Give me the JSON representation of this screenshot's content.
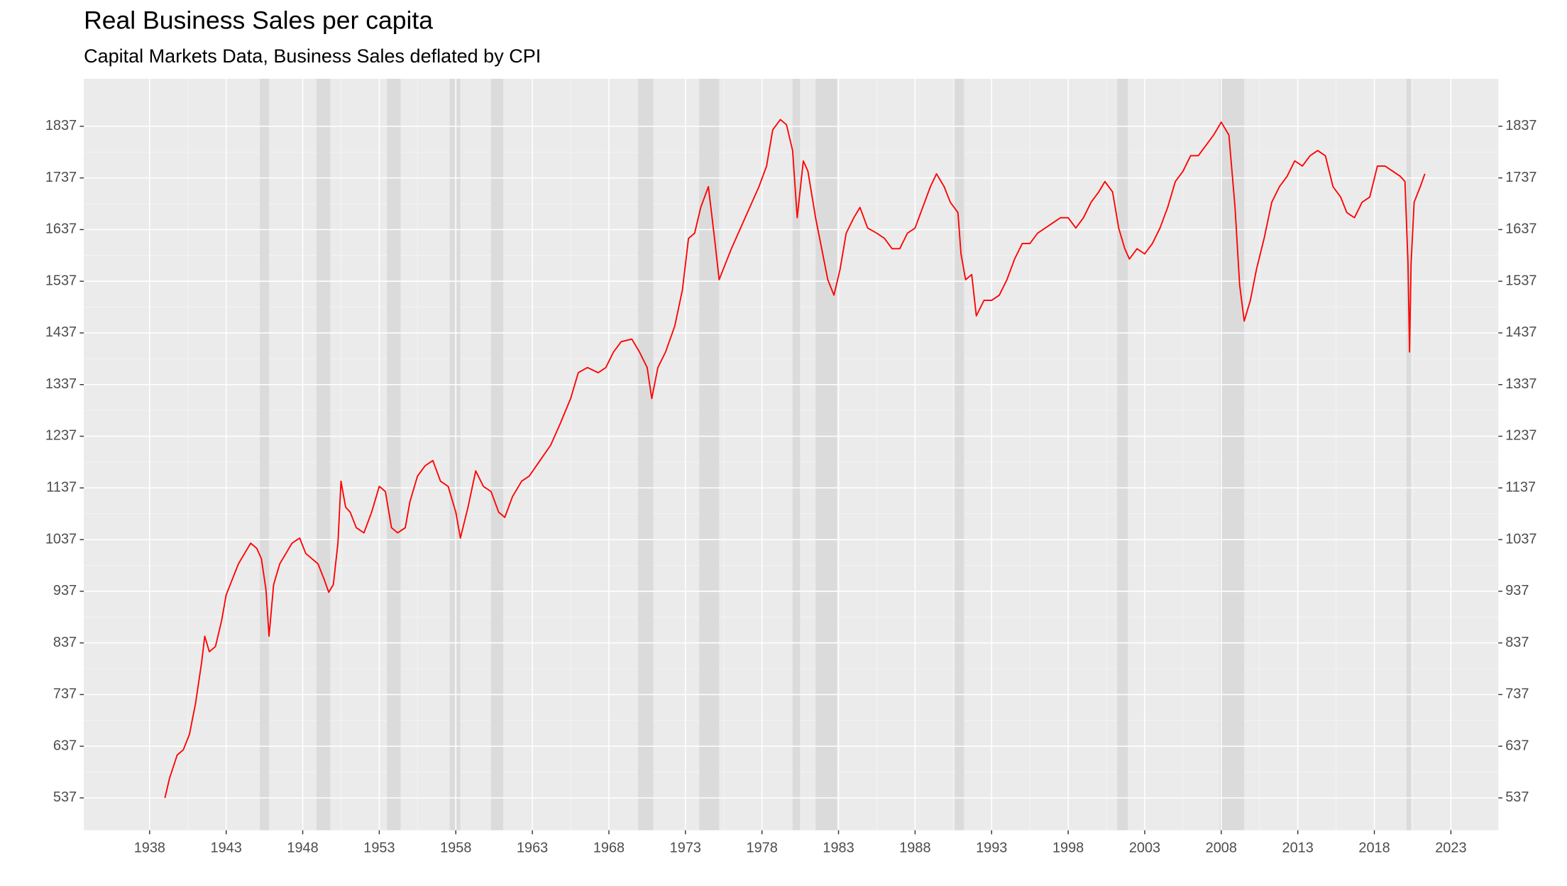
{
  "chart_data": {
    "type": "line",
    "title": "Real Business Sales per capita",
    "subtitle": "Capital Markets Data, Business Sales deflated by CPI",
    "color": "#ff0000",
    "x": [
      1939.0,
      1939.3,
      1939.8,
      1940.2,
      1940.6,
      1941.0,
      1941.4,
      1941.6,
      1941.9,
      1942.3,
      1942.7,
      1943.0,
      1943.4,
      1943.8,
      1944.2,
      1944.6,
      1945.0,
      1945.3,
      1945.6,
      1945.8,
      1946.1,
      1946.5,
      1946.9,
      1947.3,
      1947.8,
      1948.2,
      1948.6,
      1949.0,
      1949.4,
      1949.7,
      1950.0,
      1950.3,
      1950.5,
      1950.8,
      1951.1,
      1951.5,
      1952.0,
      1952.5,
      1953.0,
      1953.4,
      1953.8,
      1954.2,
      1954.7,
      1955.0,
      1955.5,
      1956.0,
      1956.5,
      1957.0,
      1957.5,
      1958.0,
      1958.3,
      1958.8,
      1959.3,
      1959.8,
      1960.3,
      1960.8,
      1961.2,
      1961.7,
      1962.3,
      1962.8,
      1963.5,
      1964.2,
      1964.8,
      1965.5,
      1966.0,
      1966.6,
      1967.3,
      1967.8,
      1968.3,
      1968.8,
      1969.5,
      1970.0,
      1970.5,
      1970.8,
      1971.2,
      1971.7,
      1972.3,
      1972.8,
      1973.2,
      1973.6,
      1974.0,
      1974.5,
      1974.9,
      1975.2,
      1975.6,
      1976.0,
      1976.6,
      1977.2,
      1977.8,
      1978.3,
      1978.7,
      1979.2,
      1979.6,
      1980.0,
      1980.3,
      1980.7,
      1981.0,
      1981.5,
      1981.9,
      1982.3,
      1982.7,
      1983.1,
      1983.5,
      1984.0,
      1984.4,
      1984.9,
      1985.5,
      1986.0,
      1986.5,
      1987.0,
      1987.5,
      1988.0,
      1988.5,
      1989.0,
      1989.4,
      1989.9,
      1990.3,
      1990.8,
      1991.0,
      1991.3,
      1991.7,
      1992.0,
      1992.5,
      1993.0,
      1993.5,
      1994.0,
      1994.5,
      1995.0,
      1995.5,
      1996.0,
      1996.5,
      1997.0,
      1997.5,
      1998.0,
      1998.5,
      1999.0,
      1999.5,
      2000.0,
      2000.4,
      2000.9,
      2001.3,
      2001.7,
      2002.0,
      2002.5,
      2003.0,
      2003.5,
      2004.0,
      2004.5,
      2005.0,
      2005.5,
      2006.0,
      2006.5,
      2007.0,
      2007.5,
      2008.0,
      2008.5,
      2008.9,
      2009.2,
      2009.5,
      2009.9,
      2010.3,
      2010.8,
      2011.3,
      2011.8,
      2012.3,
      2012.8,
      2013.3,
      2013.8,
      2014.3,
      2014.8,
      2015.3,
      2015.8,
      2016.2,
      2016.7,
      2017.2,
      2017.7,
      2018.2,
      2018.7,
      2019.2,
      2019.7,
      2020.0,
      2020.2,
      2020.3,
      2020.4,
      2020.6,
      2021.0,
      2021.3
    ],
    "series": [
      {
        "color": "#ff0000",
        "values": [
          537,
          575,
          620,
          630,
          660,
          720,
          800,
          850,
          820,
          830,
          880,
          930,
          960,
          990,
          1010,
          1030,
          1020,
          1000,
          940,
          850,
          950,
          990,
          1010,
          1030,
          1040,
          1010,
          1000,
          990,
          960,
          935,
          950,
          1030,
          1150,
          1100,
          1090,
          1060,
          1050,
          1090,
          1140,
          1130,
          1060,
          1050,
          1060,
          1110,
          1160,
          1180,
          1190,
          1150,
          1140,
          1090,
          1040,
          1100,
          1170,
          1140,
          1130,
          1090,
          1080,
          1120,
          1150,
          1160,
          1190,
          1220,
          1260,
          1310,
          1360,
          1370,
          1360,
          1370,
          1400,
          1420,
          1425,
          1400,
          1370,
          1310,
          1370,
          1400,
          1450,
          1520,
          1620,
          1630,
          1680,
          1720,
          1620,
          1540,
          1570,
          1600,
          1640,
          1680,
          1720,
          1760,
          1830,
          1850,
          1840,
          1790,
          1660,
          1770,
          1750,
          1660,
          1600,
          1540,
          1510,
          1560,
          1630,
          1660,
          1680,
          1640,
          1630,
          1620,
          1600,
          1600,
          1630,
          1640,
          1680,
          1720,
          1745,
          1720,
          1690,
          1670,
          1590,
          1540,
          1550,
          1470,
          1500,
          1500,
          1510,
          1540,
          1580,
          1610,
          1610,
          1630,
          1640,
          1650,
          1660,
          1660,
          1640,
          1660,
          1690,
          1710,
          1730,
          1710,
          1640,
          1600,
          1580,
          1600,
          1590,
          1610,
          1640,
          1680,
          1730,
          1750,
          1780,
          1780,
          1800,
          1820,
          1845,
          1820,
          1680,
          1530,
          1460,
          1500,
          1560,
          1620,
          1690,
          1720,
          1740,
          1770,
          1760,
          1780,
          1790,
          1780,
          1720,
          1700,
          1670,
          1660,
          1690,
          1700,
          1760,
          1760,
          1750,
          1740,
          1730,
          1570,
          1400,
          1570,
          1690,
          1720,
          1745
        ]
      }
    ],
    "recessions": [
      [
        1945.2,
        1945.8
      ],
      [
        1948.9,
        1949.8
      ],
      [
        1953.5,
        1954.4
      ],
      [
        1957.6,
        1958.3
      ],
      [
        1960.3,
        1961.1
      ],
      [
        1969.9,
        1970.9
      ],
      [
        1973.9,
        1975.2
      ],
      [
        1980.0,
        1980.5
      ],
      [
        1981.5,
        1982.9
      ],
      [
        1990.6,
        1991.2
      ],
      [
        2001.2,
        2001.9
      ],
      [
        2007.9,
        2009.5
      ],
      [
        2020.1,
        2020.4
      ]
    ],
    "recession_color": "#dbdbdb",
    "xlim": [
      1933.7,
      2026.1
    ],
    "ylim": [
      474.4,
      1928.9
    ],
    "xticks": [
      1938,
      1943,
      1948,
      1953,
      1958,
      1963,
      1968,
      1973,
      1978,
      1983,
      1988,
      1993,
      1998,
      2003,
      2008,
      2013,
      2018,
      2023
    ],
    "yticks": [
      537,
      637,
      737,
      837,
      937,
      1037,
      1137,
      1237,
      1337,
      1437,
      1537,
      1637,
      1737,
      1837
    ],
    "grid": true
  }
}
